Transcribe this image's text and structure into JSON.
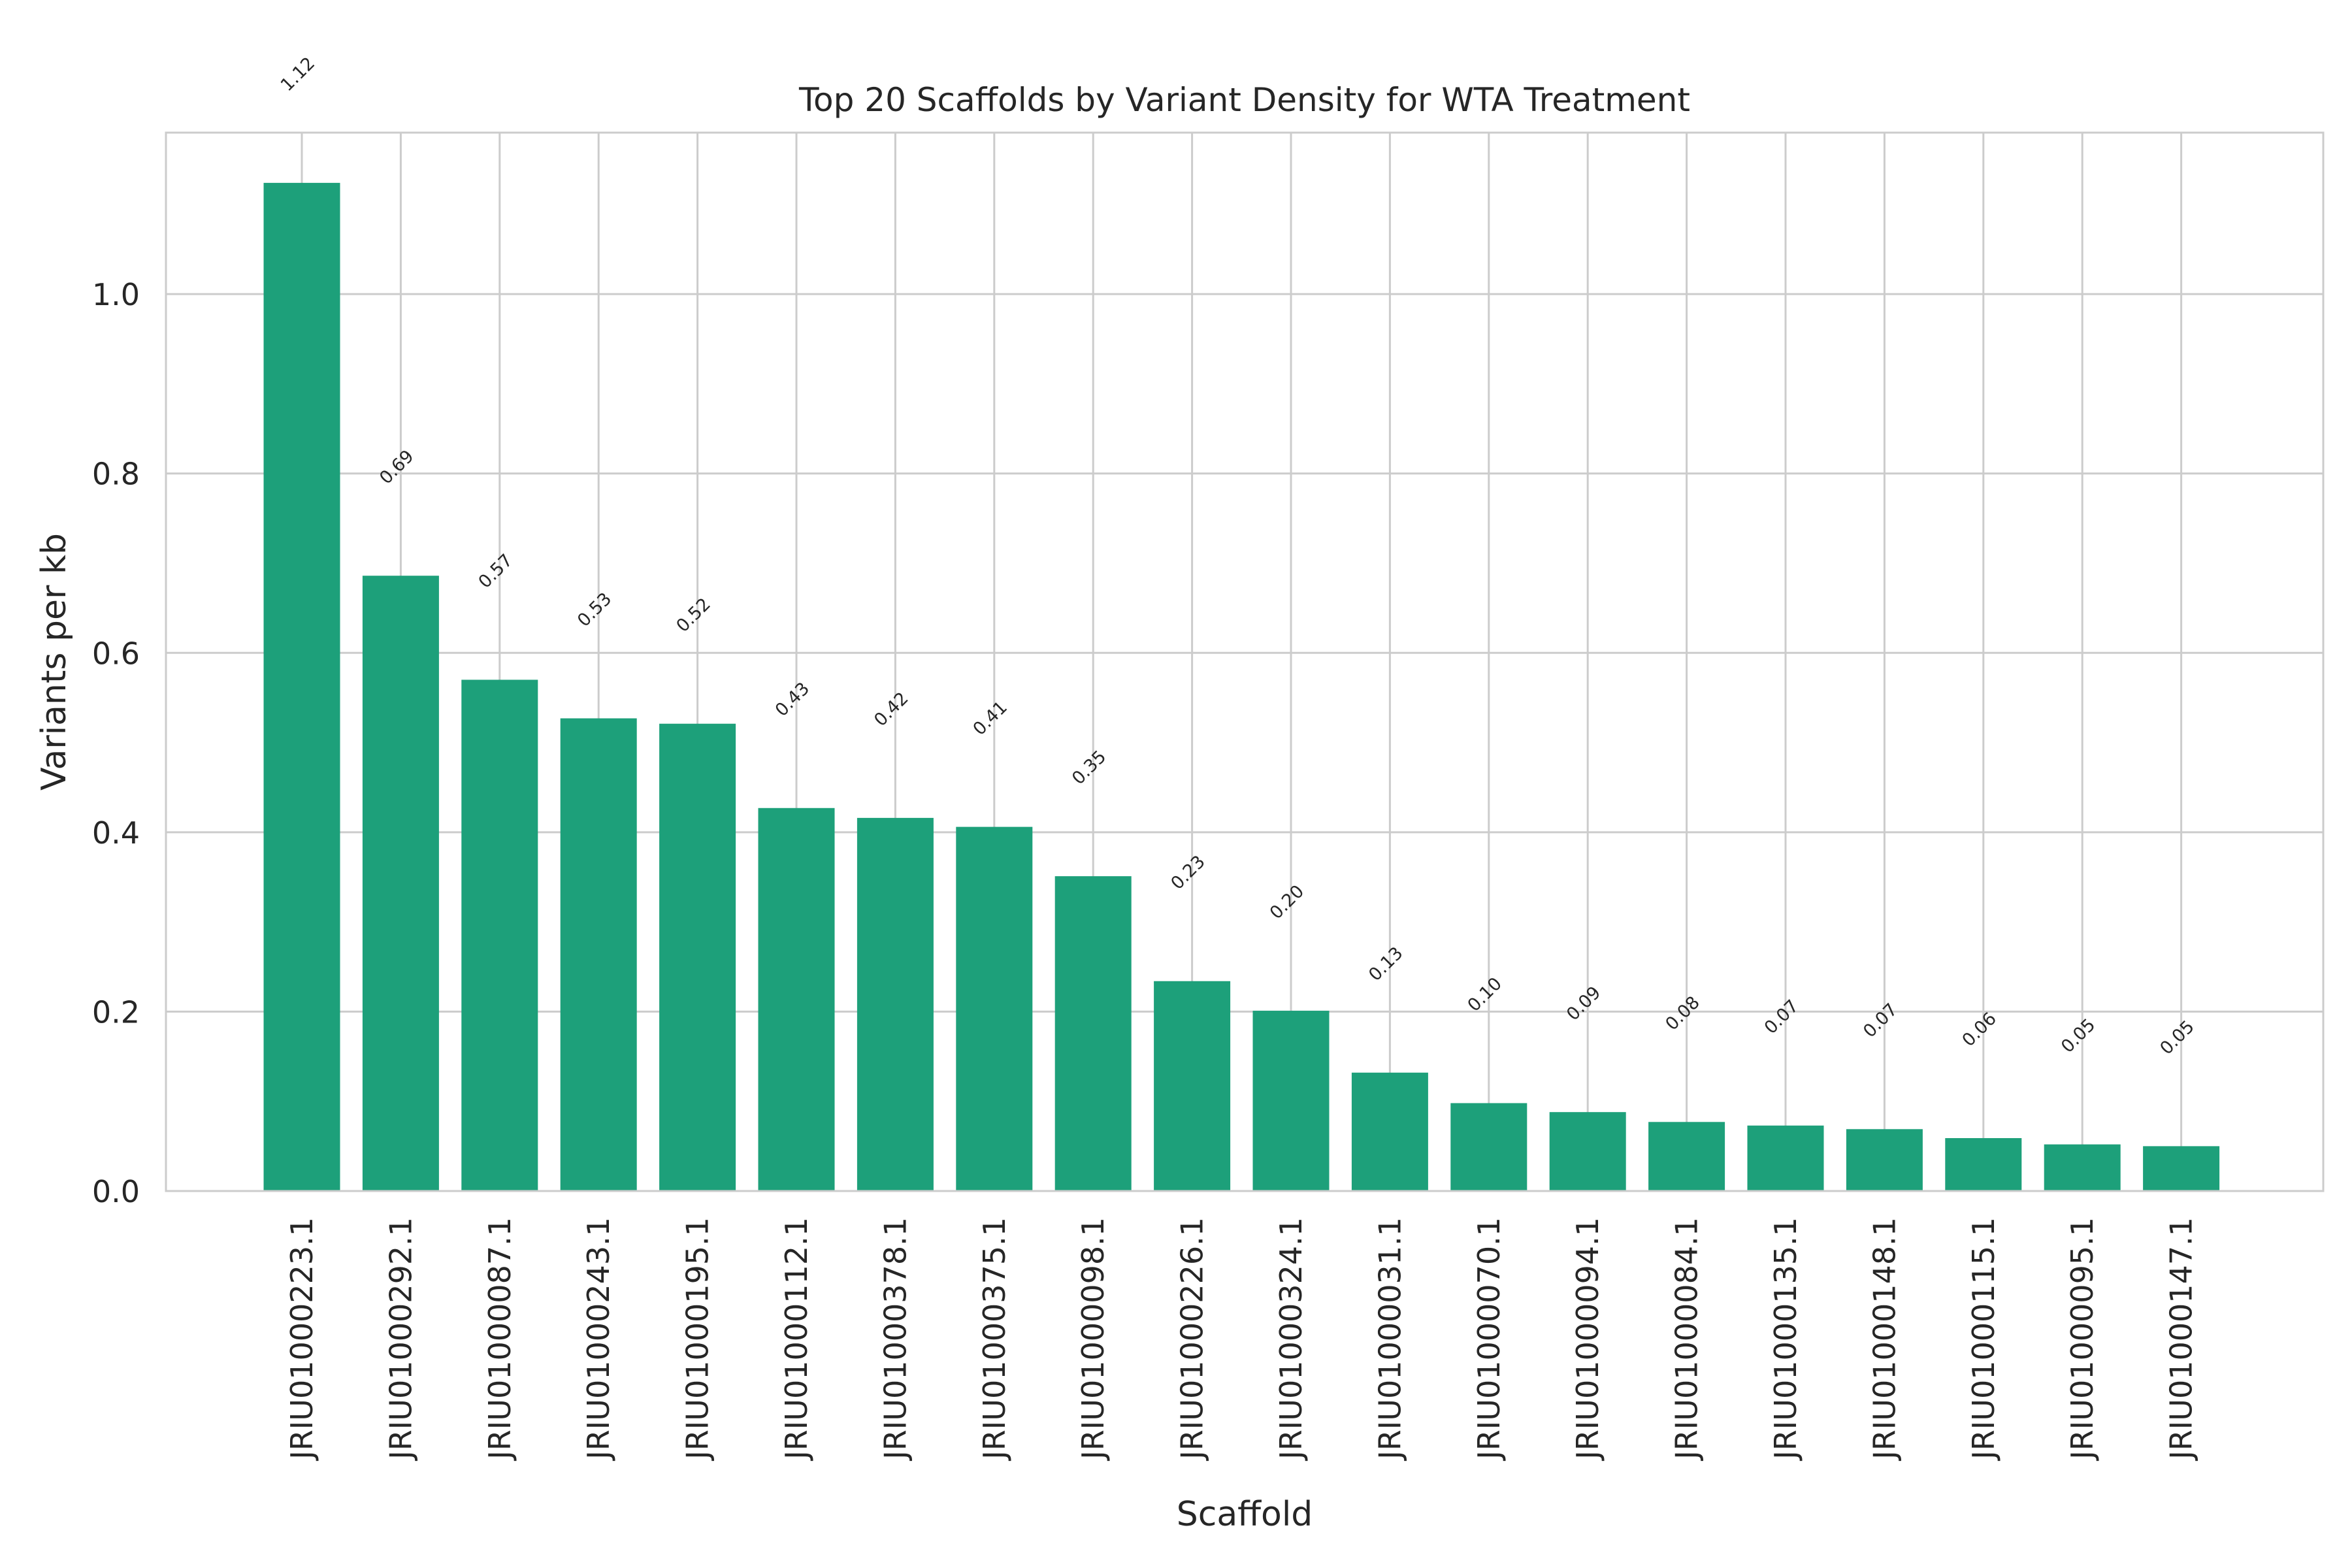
{
  "chart_data": {
    "type": "bar",
    "title": "Top 20 Scaffolds by Variant Density for WTA Treatment",
    "xlabel": "Scaffold",
    "ylabel": "Variants per kb",
    "ylim": [
      0,
      1.18
    ],
    "yticks": [
      "0.0",
      "0.2",
      "0.4",
      "0.6",
      "0.8",
      "1.0"
    ],
    "grid": true,
    "categories": [
      "JRIU01000223.1",
      "JRIU01000292.1",
      "JRIU01000087.1",
      "JRIU01000243.1",
      "JRIU01000195.1",
      "JRIU01000112.1",
      "JRIU01000378.1",
      "JRIU01000375.1",
      "JRIU01000098.1",
      "JRIU01000226.1",
      "JRIU01000324.1",
      "JRIU01000031.1",
      "JRIU01000070.1",
      "JRIU01000094.1",
      "JRIU01000084.1",
      "JRIU01000135.1",
      "JRIU01000148.1",
      "JRIU01000115.1",
      "JRIU01000095.1",
      "JRIU01000147.1"
    ],
    "values": [
      1.124,
      0.686,
      0.57,
      0.527,
      0.521,
      0.427,
      0.416,
      0.406,
      0.351,
      0.234,
      0.201,
      0.132,
      0.098,
      0.088,
      0.077,
      0.073,
      0.069,
      0.059,
      0.052,
      0.05
    ],
    "value_labels": [
      "1.12",
      "0.69",
      "0.57",
      "0.53",
      "0.52",
      "0.43",
      "0.42",
      "0.41",
      "0.35",
      "0.23",
      "0.20",
      "0.13",
      "0.10",
      "0.09",
      "0.08",
      "0.07",
      "0.07",
      "0.06",
      "0.05",
      "0.05"
    ],
    "bar_color": "#1da07a"
  }
}
